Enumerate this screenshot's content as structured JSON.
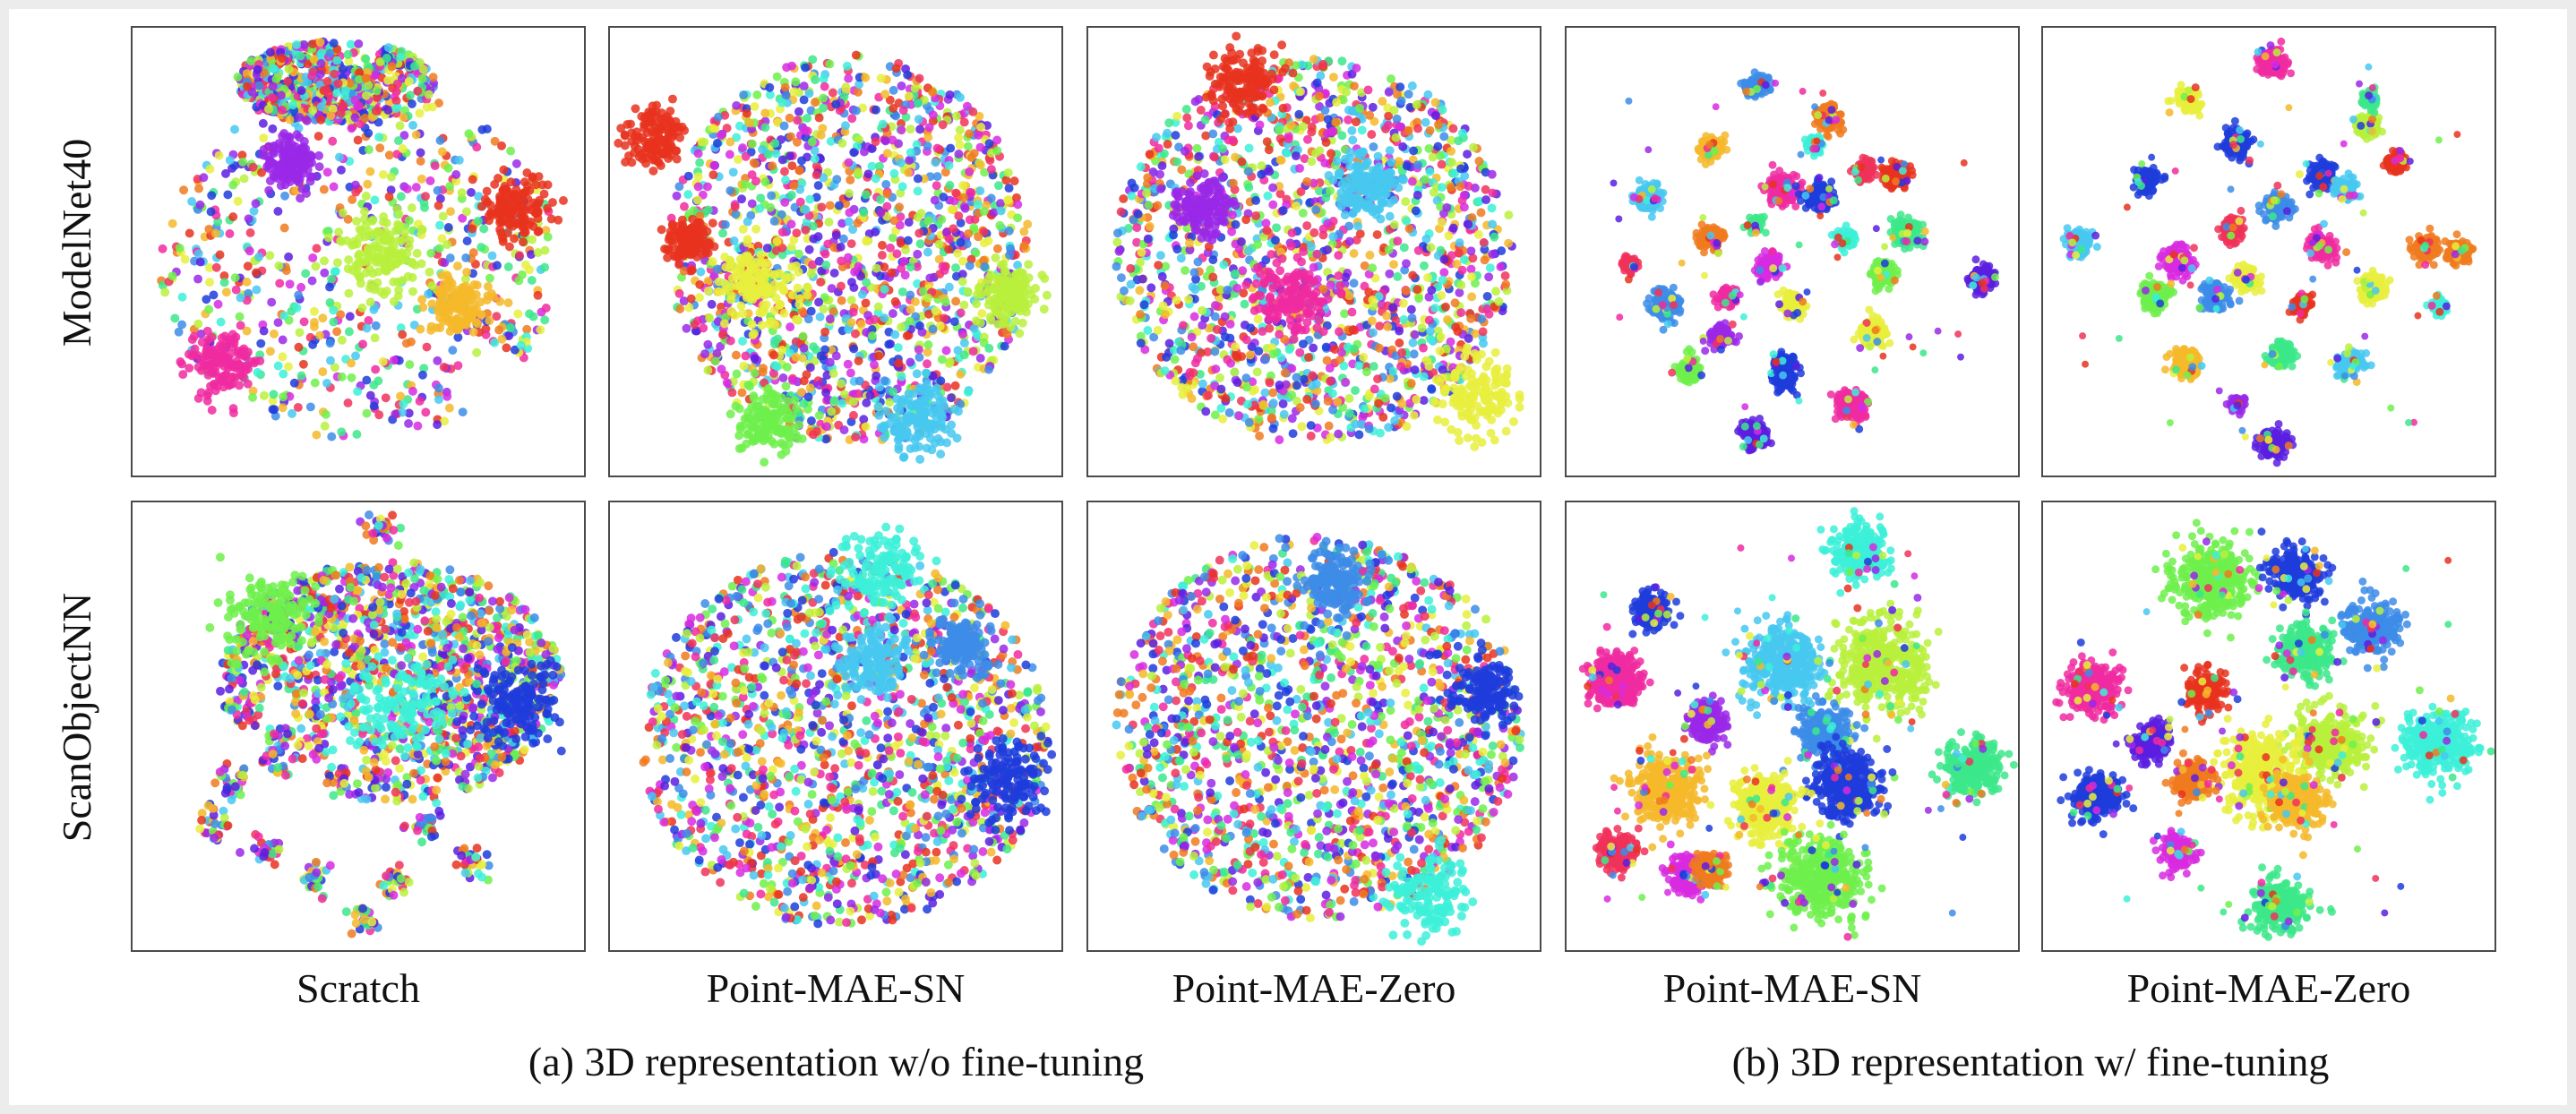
{
  "row_labels": [
    "ModelNet40",
    "ScanObjectNN"
  ],
  "column_labels": [
    "Scratch",
    "Point-MAE-SN",
    "Point-MAE-Zero",
    "Point-MAE-SN",
    "Point-MAE-Zero"
  ],
  "group_captions": {
    "a": "(a) 3D representation w/o fine-tuning",
    "b": "(b) 3D representation w/ fine-tuning"
  },
  "palette": [
    "#e8321e",
    "#f07a1e",
    "#f5b82a",
    "#e8ee3c",
    "#b8f03c",
    "#6ef04c",
    "#3ce88a",
    "#3cf0d8",
    "#46c8f0",
    "#3c8ce8",
    "#1e3cdc",
    "#5a1ee0",
    "#9a28e8",
    "#d82ae0",
    "#f02aa0",
    "#f0325a"
  ],
  "chart_data": [
    {
      "type": "scatter",
      "dataset": "ModelNet40",
      "method": "Scratch",
      "style": "mixed",
      "clusters": []
    },
    {
      "type": "scatter",
      "dataset": "ModelNet40",
      "method": "Point-MAE-SN",
      "style": "mixed",
      "clusters": []
    },
    {
      "type": "scatter",
      "dataset": "ModelNet40",
      "method": "Point-MAE-Zero",
      "style": "mixed",
      "clusters": []
    },
    {
      "type": "scatter",
      "dataset": "ModelNet40",
      "method": "Point-MAE-SN",
      "style": "clustered",
      "clusters": []
    },
    {
      "type": "scatter",
      "dataset": "ModelNet40",
      "method": "Point-MAE-Zero",
      "style": "clustered",
      "clusters": []
    },
    {
      "type": "scatter",
      "dataset": "ScanObjectNN",
      "method": "Scratch",
      "style": "mixed",
      "clusters": []
    },
    {
      "type": "scatter",
      "dataset": "ScanObjectNN",
      "method": "Point-MAE-SN",
      "style": "mixed",
      "clusters": []
    },
    {
      "type": "scatter",
      "dataset": "ScanObjectNN",
      "method": "Point-MAE-Zero",
      "style": "mixed",
      "clusters": []
    },
    {
      "type": "scatter",
      "dataset": "ScanObjectNN",
      "method": "Point-MAE-SN",
      "style": "clustered",
      "clusters": []
    },
    {
      "type": "scatter",
      "dataset": "ScanObjectNN",
      "method": "Point-MAE-Zero",
      "style": "clustered",
      "clusters": []
    }
  ]
}
